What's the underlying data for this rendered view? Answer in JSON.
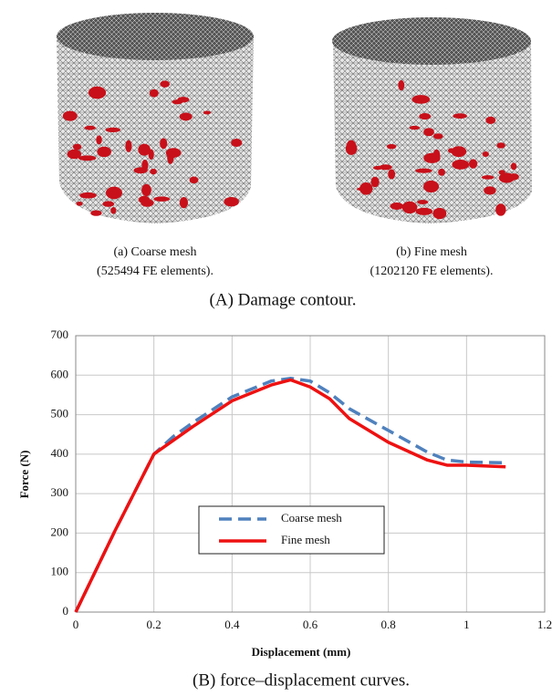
{
  "panel_a": {
    "left_caption": [
      "(a) Coarse mesh",
      "(525494 FE elements)."
    ],
    "right_caption": [
      "(b) Fine mesh",
      "(1202120 FE elements)."
    ],
    "caption": "(A) Damage contour."
  },
  "chart_data": {
    "type": "line",
    "caption": "(B) force–displacement curves.",
    "x_label": "Displacement (mm)",
    "y_label": "Force (N)",
    "x": [
      0,
      0.1,
      0.2,
      0.25,
      0.3,
      0.4,
      0.5,
      0.55,
      0.6,
      0.65,
      0.7,
      0.8,
      0.9,
      0.95,
      1.0,
      1.1
    ],
    "series": [
      {
        "name": "Coarse mesh",
        "color": "#4f81bd",
        "dashed": true,
        "values": [
          0,
          205,
          400,
          445,
          480,
          545,
          585,
          592,
          585,
          555,
          515,
          460,
          405,
          385,
          380,
          378
        ]
      },
      {
        "name": "Fine mesh",
        "color": "#ee1111",
        "dashed": false,
        "values": [
          0,
          205,
          400,
          435,
          470,
          535,
          575,
          588,
          570,
          540,
          490,
          430,
          385,
          372,
          372,
          368
        ]
      }
    ],
    "xlim": [
      0,
      1.2
    ],
    "ylim": [
      0,
      700
    ],
    "xticks": [
      0,
      0.2,
      0.4,
      0.6,
      0.8,
      1,
      1.2
    ],
    "yticks": [
      0,
      100,
      200,
      300,
      400,
      500,
      600,
      700
    ],
    "grid": true
  }
}
